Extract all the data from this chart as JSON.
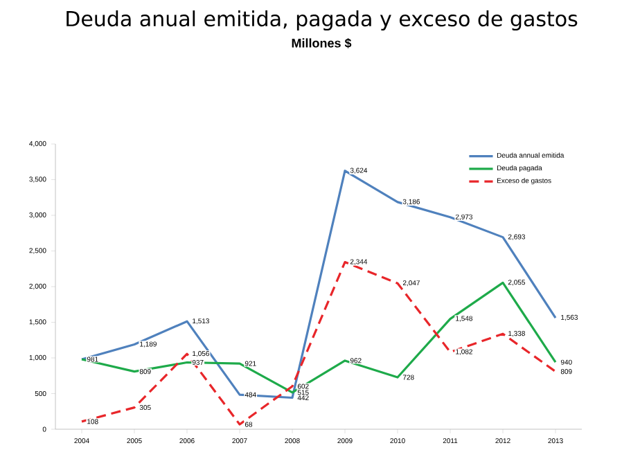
{
  "chart_data": {
    "type": "line",
    "title": "Deuda anual emitida, pagada y exceso de gastos",
    "subtitle": "Millones $",
    "categories": [
      "2004",
      "2005",
      "2006",
      "2007",
      "2008",
      "2009",
      "2010",
      "2011",
      "2012",
      "2013"
    ],
    "series": [
      {
        "name": "Deuda annual emitida",
        "color": "#4f81bd",
        "values": [
          980,
          1189,
          1513,
          484,
          442,
          3624,
          3186,
          2973,
          2693,
          1563
        ],
        "value_labels": [
          null,
          "1,189",
          "1,513",
          "484",
          "442",
          "3,624",
          "3,186",
          "2,973",
          "2,693",
          "1,563"
        ]
      },
      {
        "name": "Deuda pagada",
        "color": "#1eaa4a",
        "values": [
          981,
          809,
          937,
          921,
          515,
          962,
          728,
          1548,
          2055,
          940
        ],
        "value_labels": [
          "981",
          "809",
          "937",
          "921",
          "515",
          "962",
          "728",
          "1,548",
          "2,055",
          "940"
        ]
      },
      {
        "name": "Exceso de gastos",
        "color": "#e8262a",
        "line_style": "dashed",
        "values": [
          108,
          305,
          1056,
          68,
          602,
          2344,
          2047,
          1082,
          1338,
          809
        ],
        "value_labels": [
          "108",
          "305",
          "1,056",
          "68",
          "602",
          "2,344",
          "2,047",
          "1,082",
          "1,338",
          "809"
        ]
      }
    ],
    "ylim": [
      0,
      4000
    ],
    "yticks": [
      {
        "value": 0,
        "label": "0"
      },
      {
        "value": 500,
        "label": "500"
      },
      {
        "value": 1000,
        "label": "1,000"
      },
      {
        "value": 1500,
        "label": "1,500"
      },
      {
        "value": 2000,
        "label": "2,000"
      },
      {
        "value": 2500,
        "label": "2,500"
      },
      {
        "value": 3000,
        "label": "3,000"
      },
      {
        "value": 3500,
        "label": "3,500"
      },
      {
        "value": 4000,
        "label": "4,000"
      }
    ],
    "legend": "top right",
    "marker": "none",
    "line_style": "solid"
  }
}
